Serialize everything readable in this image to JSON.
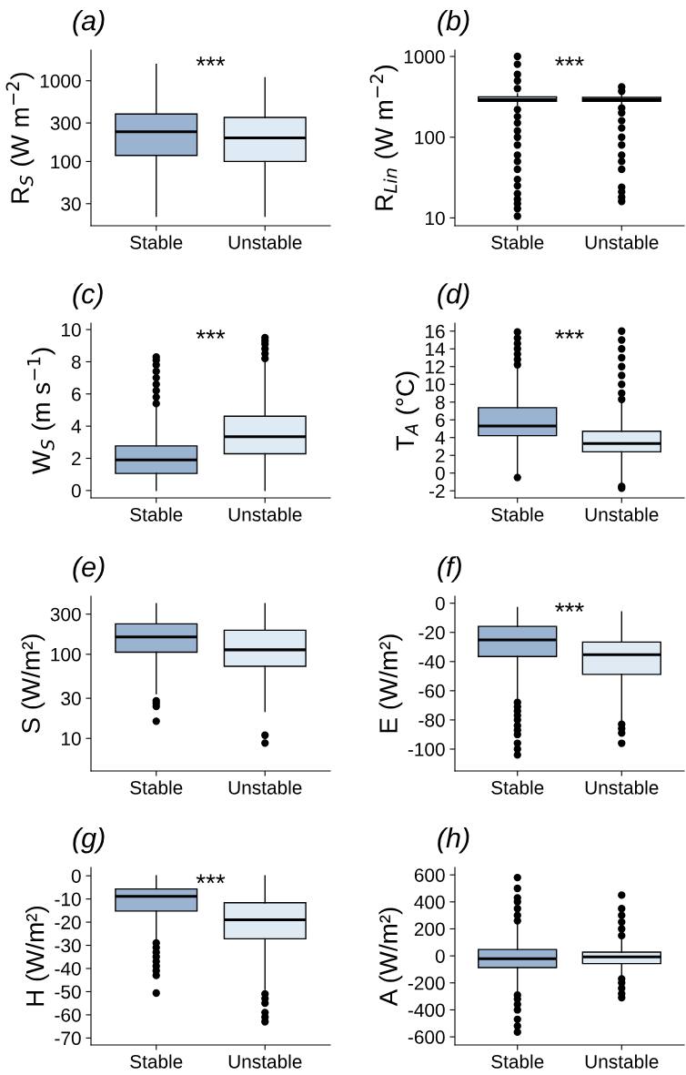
{
  "chart_data": [
    {
      "type": "box",
      "title": "(a)",
      "ylabel": "R$_{S}$ (W m$^{−2}$)",
      "log": "y",
      "categories": [
        "Stable",
        "Unstable"
      ],
      "colors": [
        "#9ab3d1",
        "#deebf5"
      ],
      "annotations": [
        "***"
      ],
      "ylim": [
        16,
        2400
      ],
      "yticks": [
        30,
        100,
        300,
        1000
      ],
      "boxes": [
        {
          "low": 21,
          "q1": 119,
          "median": 233,
          "q3": 388,
          "high": 1600
        },
        {
          "low": 21,
          "q1": 100,
          "median": 196,
          "q3": 351,
          "high": 1090
        }
      ]
    },
    {
      "type": "box",
      "title": "(b)",
      "ylabel": "R$_{Lin}$ (W m$^{−2}$)",
      "log": "y",
      "categories": [
        "Stable",
        "Unstable"
      ],
      "colors": [
        "#9ab3d1",
        "#deebf5"
      ],
      "annotations": [
        "***"
      ],
      "ylim": [
        8,
        1200
      ],
      "yticks": [
        10,
        100,
        1000
      ],
      "boxes": [
        {
          "low": 250,
          "q1": 278,
          "median": 292,
          "q3": 316,
          "high": 345,
          "outliers": [
            10.5,
            13,
            15,
            17,
            20,
            25,
            30,
            40,
            50,
            60,
            80,
            100,
            120,
            150,
            180,
            220,
            400,
            500,
            600,
            800,
            1000
          ]
        },
        {
          "low": 255,
          "q1": 278,
          "median": 292,
          "q3": 311,
          "high": 335,
          "outliers": [
            16,
            18,
            21,
            24,
            40,
            50,
            60,
            80,
            100,
            130,
            160,
            200,
            230,
            370,
            420
          ]
        }
      ]
    },
    {
      "type": "box",
      "title": "(c)",
      "ylabel": "W$_{S}$ (m s$^{−1}$)",
      "categories": [
        "Stable",
        "Unstable"
      ],
      "colors": [
        "#9ab3d1",
        "#deebf5"
      ],
      "annotations": [
        "***"
      ],
      "ylim": [
        -0.46,
        10.4
      ],
      "yticks": [
        0,
        2,
        4,
        6,
        8,
        10
      ],
      "boxes": [
        {
          "low": 0,
          "q1": 1.06,
          "median": 1.9,
          "q3": 2.77,
          "high": 5.25,
          "outliers": [
            5.4,
            5.8,
            6.2,
            6.6,
            7.0,
            7.4,
            7.8,
            8.1,
            8.3
          ]
        },
        {
          "low": 0,
          "q1": 2.28,
          "median": 3.34,
          "q3": 4.62,
          "high": 8.1,
          "outliers": [
            8.2,
            8.5,
            8.8,
            9.1,
            9.3,
            9.5
          ]
        }
      ]
    },
    {
      "type": "box",
      "title": "(d)",
      "ylabel": "T$_{A}$ (°C)",
      "categories": [
        "Stable",
        "Unstable"
      ],
      "colors": [
        "#9ab3d1",
        "#deebf5"
      ],
      "annotations": [
        "***"
      ],
      "ylim": [
        -2.8,
        16.9
      ],
      "yticks": [
        -2,
        0,
        2,
        4,
        6,
        8,
        10,
        12,
        14,
        16
      ],
      "boxes": [
        {
          "low": -0.2,
          "q1": 4.22,
          "median": 5.3,
          "q3": 7.37,
          "high": 12.0,
          "outliers": [
            -0.5,
            12.2,
            12.8,
            13.4,
            14.0,
            14.6,
            15.2,
            15.9
          ]
        },
        {
          "low": -1.2,
          "q1": 2.39,
          "median": 3.33,
          "q3": 4.71,
          "high": 8.2,
          "outliers": [
            -1.7,
            -1.5,
            8.3,
            9,
            10,
            11,
            12,
            13,
            14,
            15,
            16
          ]
        }
      ]
    },
    {
      "type": "box",
      "title": "(e)",
      "ylabel": "S (W/m²)",
      "log": "y",
      "categories": [
        "Stable",
        "Unstable"
      ],
      "colors": [
        "#9ab3d1",
        "#deebf5"
      ],
      "ylim": [
        4.1,
        490
      ],
      "yticks": [
        10,
        30,
        100,
        300
      ],
      "boxes": [
        {
          "low": 34,
          "q1": 106,
          "median": 161,
          "q3": 230,
          "high": 400,
          "outliers": [
            16,
            24,
            26,
            28
          ]
        },
        {
          "low": 21,
          "q1": 72,
          "median": 113,
          "q3": 193,
          "high": 400,
          "outliers": [
            8.8,
            10.9
          ]
        }
      ]
    },
    {
      "type": "box",
      "title": "(f)",
      "ylabel": "E (W/m²)",
      "categories": [
        "Stable",
        "Unstable"
      ],
      "colors": [
        "#9ab3d1",
        "#deebf5"
      ],
      "annotations": [
        "***"
      ],
      "ylim": [
        -115,
        4.8
      ],
      "yticks": [
        -100,
        -80,
        -60,
        -40,
        -20,
        0
      ],
      "boxes": [
        {
          "low": -65.6,
          "q1": -36.5,
          "median": -25.1,
          "q3": -15.9,
          "high": -3,
          "outliers": [
            -104,
            -100,
            -96,
            -90,
            -87,
            -84,
            -80,
            -77,
            -74,
            -71,
            -68
          ]
        },
        {
          "low": -80.5,
          "q1": -48.8,
          "median": -35.3,
          "q3": -26.6,
          "high": -6,
          "outliers": [
            -96,
            -89,
            -86,
            -83
          ]
        }
      ]
    },
    {
      "type": "box",
      "title": "(g)",
      "ylabel": "H (W/m²)",
      "categories": [
        "Stable",
        "Unstable"
      ],
      "colors": [
        "#9ab3d1",
        "#deebf5"
      ],
      "annotations": [
        "***"
      ],
      "ylim": [
        -73,
        3.6
      ],
      "yticks": [
        -70,
        -60,
        -50,
        -40,
        -30,
        -20,
        -10,
        0
      ],
      "boxes": [
        {
          "low": -28.2,
          "q1": -15.2,
          "median": -8.9,
          "q3": -5.7,
          "high": 0,
          "outliers": [
            -50.6,
            -43,
            -41,
            -39,
            -37,
            -35,
            -33,
            -31,
            -29
          ]
        },
        {
          "low": -49.1,
          "q1": -27.2,
          "median": -19,
          "q3": -11.6,
          "high": 0,
          "outliers": [
            -63,
            -61,
            -59,
            -55,
            -53,
            -51
          ]
        }
      ]
    },
    {
      "type": "box",
      "title": "(h)",
      "ylabel": "A (W/m²)",
      "categories": [
        "Stable",
        "Unstable"
      ],
      "colors": [
        "#9ab3d1",
        "#deebf5"
      ],
      "ylim": [
        -660,
        655
      ],
      "yticks": [
        -600,
        -400,
        -200,
        0,
        200,
        400,
        600
      ],
      "boxes": [
        {
          "low": -260,
          "q1": -87,
          "median": -21,
          "q3": 47,
          "high": 247,
          "outliers": [
            -565,
            -520,
            -470,
            -400,
            -360,
            -320,
            -290,
            260,
            300,
            350,
            400,
            430,
            500,
            580
          ]
        },
        {
          "low": -146,
          "q1": -57,
          "median": -8,
          "q3": 28,
          "high": 149,
          "outliers": [
            -310,
            -280,
            -240,
            -200,
            -170,
            150,
            200,
            250,
            300,
            350,
            450
          ]
        }
      ]
    }
  ]
}
